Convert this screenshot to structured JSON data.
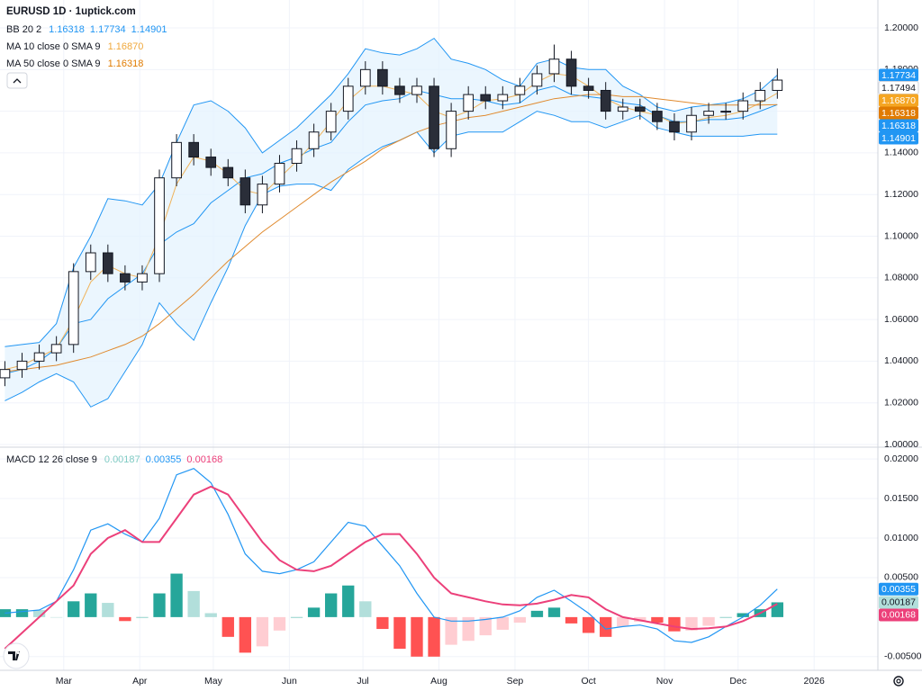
{
  "chart_data": {
    "type": "candlestick",
    "title": "EURUSD 1D · 1uptick.com",
    "legend": [
      {
        "label": "BB 20 2",
        "values": [
          {
            "label": "1.16318",
            "color": "#2196f3"
          },
          {
            "label": "1.17734",
            "color": "#2196f3"
          },
          {
            "label": "1.14901",
            "color": "#2196f3"
          }
        ]
      },
      {
        "label": "MA 10 close 0 SMA 9",
        "values": [
          {
            "label": "1.16870",
            "color": "#f0a83c"
          }
        ]
      },
      {
        "label": "MA 50 close 0 SMA 9",
        "values": [
          {
            "label": "1.16318",
            "color": "#e07b00"
          }
        ]
      }
    ],
    "x": [
      35,
      42,
      49,
      56,
      63,
      70,
      77,
      84,
      91,
      98,
      105,
      112,
      119,
      126,
      133,
      140,
      147,
      154,
      161,
      168,
      175,
      182,
      189,
      196,
      203,
      210,
      217,
      224,
      231,
      238,
      245,
      252,
      259,
      266,
      273,
      280,
      287,
      294,
      301,
      308,
      315,
      322,
      329,
      336,
      343,
      350
    ],
    "xlim": [
      33,
      391
    ],
    "xticks": [
      {
        "value": 59,
        "label": "Mar"
      },
      {
        "value": 90,
        "label": "Apr"
      },
      {
        "value": 120,
        "label": "May"
      },
      {
        "value": 151,
        "label": "Jun"
      },
      {
        "value": 181,
        "label": "Jul"
      },
      {
        "value": 212,
        "label": "Aug"
      },
      {
        "value": 243,
        "label": "Sep"
      },
      {
        "value": 273,
        "label": "Oct"
      },
      {
        "value": 304,
        "label": "Nov"
      },
      {
        "value": 334,
        "label": "Dec"
      },
      {
        "value": 365,
        "label": "2026"
      }
    ],
    "ylim": [
      0.9987,
      1.2134
    ],
    "yticks": [
      {
        "value": 1.0,
        "label": "1.00000"
      },
      {
        "value": 1.02,
        "label": "1.02000"
      },
      {
        "value": 1.04,
        "label": "1.04000"
      },
      {
        "value": 1.06,
        "label": "1.06000"
      },
      {
        "value": 1.08,
        "label": "1.08000"
      },
      {
        "value": 1.1,
        "label": "1.10000"
      },
      {
        "value": 1.12,
        "label": "1.12000"
      },
      {
        "value": 1.14,
        "label": "1.14000"
      },
      {
        "value": 1.16,
        "label": "1.16000"
      },
      {
        "value": 1.18,
        "label": "1.18000"
      },
      {
        "value": 1.2,
        "label": "1.20000"
      }
    ],
    "grid": true,
    "open": [
      1.032,
      1.036,
      1.04,
      1.044,
      1.048,
      1.083,
      1.092,
      1.082,
      1.078,
      1.082,
      1.128,
      1.145,
      1.138,
      1.133,
      1.128,
      1.115,
      1.125,
      1.135,
      1.142,
      1.15,
      1.16,
      1.172,
      1.18,
      1.172,
      1.168,
      1.172,
      1.142,
      1.16,
      1.168,
      1.165,
      1.168,
      1.172,
      1.178,
      1.185,
      1.172,
      1.17,
      1.16,
      1.162,
      1.16,
      1.155,
      1.15,
      1.158,
      1.16,
      1.16,
      1.165,
      1.17
    ],
    "high": [
      1.04,
      1.044,
      1.048,
      1.052,
      1.087,
      1.096,
      1.096,
      1.086,
      1.086,
      1.132,
      1.149,
      1.149,
      1.142,
      1.137,
      1.132,
      1.129,
      1.139,
      1.146,
      1.154,
      1.164,
      1.176,
      1.184,
      1.184,
      1.176,
      1.176,
      1.176,
      1.164,
      1.172,
      1.172,
      1.172,
      1.176,
      1.182,
      1.192,
      1.189,
      1.176,
      1.174,
      1.166,
      1.166,
      1.164,
      1.159,
      1.162,
      1.164,
      1.164,
      1.169,
      1.174,
      1.1805
    ],
    "low": [
      1.028,
      1.032,
      1.036,
      1.04,
      1.044,
      1.079,
      1.078,
      1.074,
      1.074,
      1.078,
      1.124,
      1.134,
      1.129,
      1.124,
      1.111,
      1.111,
      1.121,
      1.131,
      1.138,
      1.146,
      1.156,
      1.168,
      1.168,
      1.164,
      1.164,
      1.138,
      1.138,
      1.156,
      1.161,
      1.161,
      1.164,
      1.168,
      1.174,
      1.168,
      1.166,
      1.156,
      1.156,
      1.156,
      1.151,
      1.146,
      1.146,
      1.154,
      1.156,
      1.156,
      1.161,
      1.166
    ],
    "close": [
      1.036,
      1.04,
      1.044,
      1.048,
      1.083,
      1.092,
      1.082,
      1.078,
      1.082,
      1.128,
      1.145,
      1.138,
      1.133,
      1.128,
      1.115,
      1.125,
      1.135,
      1.142,
      1.15,
      1.16,
      1.172,
      1.18,
      1.172,
      1.168,
      1.172,
      1.142,
      1.16,
      1.168,
      1.165,
      1.168,
      1.172,
      1.178,
      1.185,
      1.172,
      1.17,
      1.16,
      1.162,
      1.16,
      1.155,
      1.15,
      1.158,
      1.16,
      1.16,
      1.165,
      1.17,
      1.17494
    ],
    "up_color": "#ffffff",
    "down_color": "#2a2e39",
    "band_fill": "#e3f2fd",
    "overlays": [
      {
        "color": "#2196f3",
        "values": [
          1.047,
          1.048,
          1.049,
          1.058,
          1.085,
          1.1,
          1.118,
          1.117,
          1.115,
          1.125,
          1.145,
          1.163,
          1.165,
          1.16,
          1.152,
          1.14,
          1.146,
          1.152,
          1.16,
          1.168,
          1.178,
          1.19,
          1.188,
          1.187,
          1.19,
          1.195,
          1.185,
          1.183,
          1.18,
          1.175,
          1.172,
          1.183,
          1.185,
          1.181,
          1.18,
          1.18,
          1.172,
          1.168,
          1.162,
          1.16,
          1.162,
          1.163,
          1.164,
          1.166,
          1.17,
          1.17734
        ]
      },
      {
        "color": "#2196f3",
        "values": [
          1.034,
          1.036,
          1.04,
          1.046,
          1.058,
          1.06,
          1.07,
          1.076,
          1.082,
          1.096,
          1.102,
          1.106,
          1.116,
          1.122,
          1.128,
          1.13,
          1.135,
          1.138,
          1.142,
          1.145,
          1.155,
          1.163,
          1.165,
          1.166,
          1.17,
          1.168,
          1.166,
          1.166,
          1.165,
          1.163,
          1.164,
          1.17,
          1.172,
          1.168,
          1.167,
          1.166,
          1.164,
          1.163,
          1.158,
          1.155,
          1.155,
          1.156,
          1.156,
          1.157,
          1.16,
          1.16318
        ]
      },
      {
        "color": "#2196f3",
        "values": [
          1.021,
          1.025,
          1.03,
          1.034,
          1.03,
          1.018,
          1.022,
          1.035,
          1.048,
          1.068,
          1.058,
          1.05,
          1.068,
          1.085,
          1.105,
          1.12,
          1.124,
          1.125,
          1.125,
          1.122,
          1.132,
          1.138,
          1.143,
          1.146,
          1.15,
          1.14,
          1.148,
          1.15,
          1.15,
          1.15,
          1.155,
          1.16,
          1.158,
          1.155,
          1.155,
          1.152,
          1.155,
          1.158,
          1.152,
          1.15,
          1.148,
          1.148,
          1.148,
          1.148,
          1.149,
          1.14901
        ]
      },
      {
        "color": "#f0b35a",
        "values": [
          1.036,
          1.038,
          1.042,
          1.046,
          1.06,
          1.078,
          1.086,
          1.082,
          1.08,
          1.1,
          1.125,
          1.138,
          1.136,
          1.13,
          1.122,
          1.12,
          1.128,
          1.136,
          1.145,
          1.155,
          1.165,
          1.172,
          1.172,
          1.17,
          1.168,
          1.16,
          1.157,
          1.16,
          1.165,
          1.166,
          1.168,
          1.174,
          1.178,
          1.177,
          1.172,
          1.166,
          1.162,
          1.16,
          1.158,
          1.154,
          1.155,
          1.157,
          1.158,
          1.16,
          1.164,
          1.1687
        ]
      },
      {
        "color": "#e08a2e",
        "values": [
          1.035,
          1.036,
          1.037,
          1.038,
          1.04,
          1.042,
          1.045,
          1.048,
          1.052,
          1.058,
          1.065,
          1.072,
          1.08,
          1.088,
          1.095,
          1.102,
          1.108,
          1.114,
          1.12,
          1.126,
          1.131,
          1.136,
          1.142,
          1.146,
          1.15,
          1.153,
          1.155,
          1.157,
          1.158,
          1.16,
          1.162,
          1.164,
          1.166,
          1.167,
          1.168,
          1.168,
          1.167,
          1.167,
          1.166,
          1.165,
          1.164,
          1.163,
          1.163,
          1.163,
          1.163,
          1.16318
        ]
      }
    ],
    "price_tags": [
      {
        "value": 1.17734,
        "label": "1.17734",
        "color": "#2196f3"
      },
      {
        "value": 1.17494,
        "label": "1.17494",
        "color": "#ffffff"
      },
      {
        "value": 1.1687,
        "label": "1.16870",
        "color": "#f5a623"
      },
      {
        "value": 1.16318,
        "label": "1.16318",
        "color": "#e07b00"
      },
      {
        "value": 1.16318,
        "label": "1.16318",
        "color": "#2196f3"
      },
      {
        "value": 1.14901,
        "label": "1.14901",
        "color": "#2196f3"
      }
    ],
    "macd": {
      "legend": {
        "label": "MACD 12 26 close 9",
        "values": [
          {
            "label": "0.00187",
            "color": "#80cbc4"
          },
          {
            "label": "0.00355",
            "color": "#2196f3"
          },
          {
            "label": "0.00168",
            "color": "#ec407a"
          }
        ]
      },
      "ylim": [
        -0.00673,
        0.0215
      ],
      "yticks": [
        {
          "value": 0.02,
          "label": "0.02000"
        },
        {
          "value": 0.015,
          "label": "0.01500"
        },
        {
          "value": 0.01,
          "label": "0.01000"
        },
        {
          "value": 0.005,
          "label": "0.00500"
        },
        {
          "value": -0.005,
          "label": "-0.00500"
        }
      ],
      "histogram": [
        0.001,
        0.001,
        0.0009,
        0.0,
        0.002,
        0.003,
        0.0018,
        -0.0005,
        0.0,
        0.003,
        0.0055,
        0.0033,
        0.0005,
        -0.0025,
        -0.0045,
        -0.0037,
        -0.0017,
        0.0,
        0.0012,
        0.003,
        0.004,
        0.002,
        -0.0015,
        -0.004,
        -0.005,
        -0.005,
        -0.0035,
        -0.003,
        -0.0023,
        -0.0016,
        -0.0007,
        0.0008,
        0.0012,
        -0.0008,
        -0.002,
        -0.0025,
        -0.0012,
        -0.0006,
        -0.0007,
        -0.0018,
        -0.0017,
        -0.0011,
        0.0,
        0.0005,
        0.001,
        0.00187
      ],
      "macd_line": {
        "color": "#2196f3",
        "values": [
          0.0005,
          0.0007,
          0.0009,
          0.002,
          0.006,
          0.011,
          0.0118,
          0.0105,
          0.0095,
          0.0125,
          0.018,
          0.0188,
          0.017,
          0.013,
          0.008,
          0.0058,
          0.0055,
          0.006,
          0.007,
          0.0095,
          0.012,
          0.0115,
          0.009,
          0.0065,
          0.003,
          0.0,
          -0.0005,
          -0.0005,
          -0.0003,
          0.0,
          0.0008,
          0.0025,
          0.0034,
          0.002,
          0.0005,
          -0.0015,
          -0.0012,
          -0.001,
          -0.0015,
          -0.003,
          -0.0032,
          -0.0025,
          -0.0012,
          0.0,
          0.0015,
          0.00355
        ]
      },
      "signal_line": {
        "color": "#ec407a",
        "values": [
          -0.004,
          -0.002,
          0.0,
          0.002,
          0.004,
          0.008,
          0.01,
          0.011,
          0.0095,
          0.0095,
          0.0125,
          0.0155,
          0.0165,
          0.0155,
          0.0125,
          0.0095,
          0.0072,
          0.006,
          0.0058,
          0.0065,
          0.008,
          0.0095,
          0.0105,
          0.0105,
          0.008,
          0.005,
          0.003,
          0.0025,
          0.002,
          0.0016,
          0.0015,
          0.0017,
          0.0022,
          0.0028,
          0.0025,
          0.001,
          0.0,
          -0.0004,
          -0.0008,
          -0.0012,
          -0.0015,
          -0.0014,
          -0.0012,
          -0.0005,
          0.0005,
          0.00168
        ]
      },
      "hist_colors": {
        "up_rising": "#26a69a",
        "up_falling": "#b2dfdb",
        "down_falling": "#ff5252",
        "down_rising": "#ffcdd2"
      },
      "tags": [
        {
          "value": 0.00355,
          "label": "0.00355",
          "color": "#2196f3"
        },
        {
          "value": 0.00187,
          "label": "0.00187",
          "color": "#b2dfdb"
        },
        {
          "value": 0.00168,
          "label": "0.00168",
          "color": "#ec407a"
        }
      ]
    }
  }
}
